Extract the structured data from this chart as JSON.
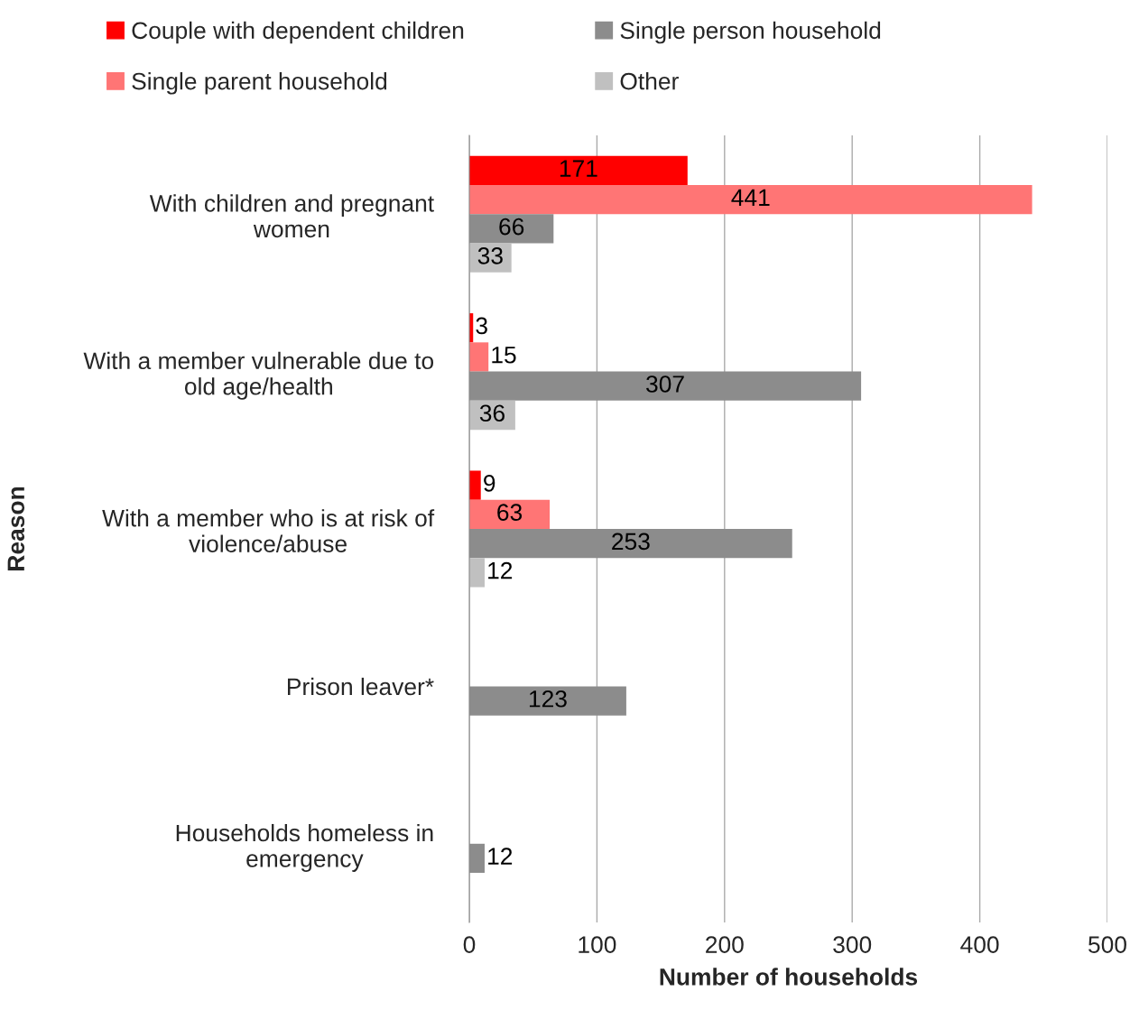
{
  "chart_data": {
    "type": "bar",
    "orientation": "horizontal",
    "xlabel": "Number of households",
    "ylabel": "Reason",
    "categories": [
      "With children and pregnant\nwomen",
      "With a member vulnerable due to\nold age/health",
      "With a member who is at risk of\nviolence/abuse",
      "Prison leaver*",
      "Households homeless in\nemergency"
    ],
    "series": [
      {
        "name": "Couple with dependent children",
        "color": "#ff0000",
        "values": [
          171,
          3,
          9,
          null,
          null
        ]
      },
      {
        "name": "Single parent household",
        "color": "#ff7575",
        "values": [
          441,
          15,
          63,
          null,
          null
        ]
      },
      {
        "name": "Single person household",
        "color": "#8c8c8c",
        "values": [
          66,
          307,
          253,
          123,
          12
        ]
      },
      {
        "name": "Other",
        "color": "#c0c0c0",
        "values": [
          33,
          36,
          12,
          null,
          null
        ]
      }
    ],
    "xlim": [
      0,
      500
    ],
    "xticks": [
      0,
      100,
      200,
      300,
      400,
      500
    ],
    "grid": "x",
    "legend": "top",
    "data_labels": true
  }
}
